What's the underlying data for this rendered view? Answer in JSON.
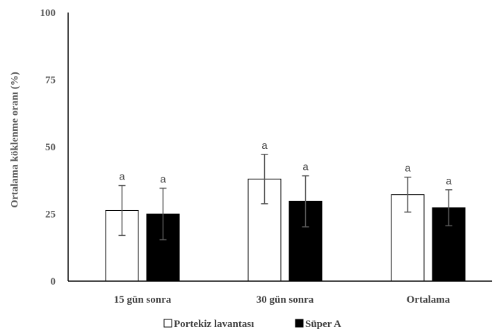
{
  "chart_data": {
    "type": "bar",
    "ylabel": "Ortalama köklenme oranı (%)",
    "xlabel": "",
    "ylim": [
      0,
      100
    ],
    "yticks": [
      "0",
      "25",
      "50",
      "75",
      "100"
    ],
    "categories": [
      "15 gün sonra",
      "30 gün sonra",
      "Ortalama"
    ],
    "series": [
      {
        "name": "Portekiz lavantası",
        "color": "#ffffff",
        "values": [
          26.3,
          38.0,
          32.2
        ],
        "error": [
          9.3,
          9.2,
          6.5
        ],
        "labels": [
          "a",
          "a",
          "a"
        ]
      },
      {
        "name": "Süper A",
        "color": "#000000",
        "values": [
          25.0,
          29.7,
          27.3
        ],
        "error": [
          9.6,
          9.5,
          6.7
        ],
        "labels": [
          "a",
          "a",
          "a"
        ]
      }
    ],
    "legend": "bottom",
    "grid": false
  }
}
